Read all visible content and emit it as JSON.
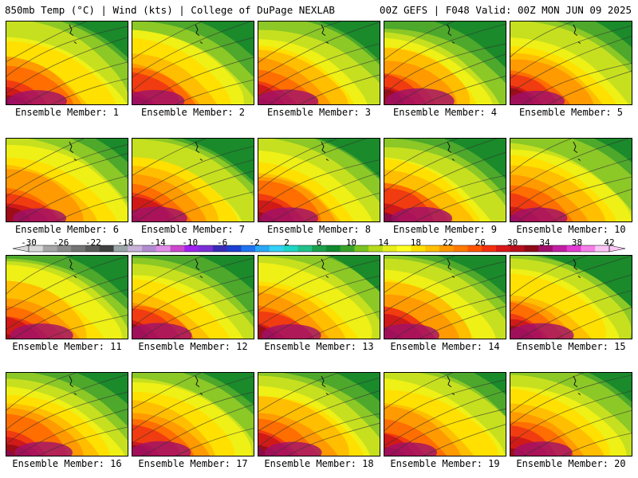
{
  "header": {
    "left": "850mb Temp (°C) | Wind (kts) | College of DuPage NEXLAB",
    "right": "00Z GEFS | F048 Valid: 00Z MON JUN 09 2025"
  },
  "panels": [
    {
      "label": "Ensemble Member: 1",
      "heat": 0.62
    },
    {
      "label": "Ensemble Member: 2",
      "heat": 0.65
    },
    {
      "label": "Ensemble Member: 3",
      "heat": 0.7
    },
    {
      "label": "Ensemble Member: 4",
      "heat": 0.85
    },
    {
      "label": "Ensemble Member: 5",
      "heat": 0.55
    },
    {
      "label": "Ensemble Member: 6",
      "heat": 0.5
    },
    {
      "label": "Ensemble Member: 7",
      "heat": 0.68
    },
    {
      "label": "Ensemble Member: 8",
      "heat": 0.6
    },
    {
      "label": "Ensemble Member: 9",
      "heat": 0.66
    },
    {
      "label": "Ensemble Member: 10",
      "heat": 0.58
    },
    {
      "label": "Ensemble Member: 11",
      "heat": 0.72
    },
    {
      "label": "Ensemble Member: 12",
      "heat": 0.8
    },
    {
      "label": "Ensemble Member: 13",
      "heat": 0.64
    },
    {
      "label": "Ensemble Member: 14",
      "heat": 0.7
    },
    {
      "label": "Ensemble Member: 15",
      "heat": 0.78
    },
    {
      "label": "Ensemble Member: 16",
      "heat": 0.6
    },
    {
      "label": "Ensemble Member: 17",
      "heat": 0.66
    },
    {
      "label": "Ensemble Member: 18",
      "heat": 0.58
    },
    {
      "label": "Ensemble Member: 19",
      "heat": 0.5
    },
    {
      "label": "Ensemble Member: 20",
      "heat": 0.62
    }
  ],
  "colorbar": {
    "tick_labels": [
      "-30",
      "-26",
      "-22",
      "-18",
      "-14",
      "-10",
      "-6",
      "-2",
      "2",
      "6",
      "10",
      "14",
      "18",
      "22",
      "26",
      "30",
      "34",
      "38",
      "42"
    ],
    "colors": [
      "#d9d9d9",
      "#a6a6a6",
      "#8c8c8c",
      "#737373",
      "#5a5a5a",
      "#404040",
      "#9aa5a8",
      "#c9b3d9",
      "#b38bd1",
      "#e18de8",
      "#cc47cc",
      "#a020f0",
      "#7a2fd6",
      "#3b2bb8",
      "#1c3fd1",
      "#1f74ef",
      "#2aa7f5",
      "#32d1f5",
      "#1fd6c4",
      "#22c08a",
      "#1b9f4c",
      "#0f8a2e",
      "#3aa22a",
      "#7bc31f",
      "#b6dc1b",
      "#e8ef1a",
      "#ffff22",
      "#ffe100",
      "#ffc000",
      "#ff9800",
      "#ff7a00",
      "#ff5400",
      "#f23010",
      "#d81818",
      "#b80f1a",
      "#8e0a16",
      "#a0106a",
      "#c01fa4",
      "#e33ad3",
      "#f57fe9",
      "#fbc6f5"
    ]
  }
}
